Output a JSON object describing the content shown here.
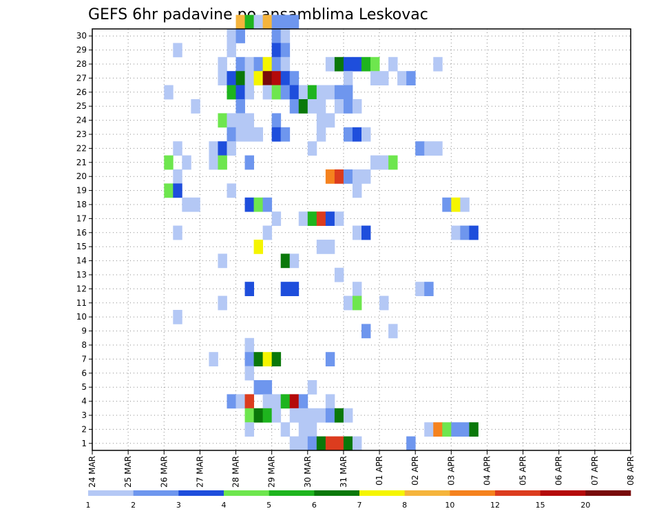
{
  "chart_data": {
    "type": "heatmap",
    "title": "GEFS 6hr padavine po ansamblima Leskovac",
    "xlabel": "",
    "ylabel": "",
    "x_labels": [
      "24 MAR",
      "25 MAR",
      "26 MAR",
      "27 MAR",
      "28 MAR",
      "29 MAR",
      "30 MAR",
      "31 MAR",
      "01 APR",
      "02 APR",
      "03 APR",
      "04 APR",
      "05 APR",
      "06 APR",
      "07 APR",
      "08 APR"
    ],
    "y_labels": [
      "1",
      "2",
      "3",
      "4",
      "5",
      "6",
      "7",
      "8",
      "9",
      "10",
      "11",
      "12",
      "13",
      "14",
      "15",
      "16",
      "17",
      "18",
      "19",
      "20",
      "21",
      "22",
      "23",
      "24",
      "25",
      "26",
      "27",
      "28",
      "29",
      "30"
    ],
    "colorbar": {
      "labels": [
        "1",
        "2",
        "3",
        "4",
        "5",
        "6",
        "7",
        "8",
        "10",
        "12",
        "15",
        "20"
      ],
      "colors": [
        "#b4c8f5",
        "#6e96ee",
        "#1e4edc",
        "#6ee64e",
        "#1eb41e",
        "#0a780a",
        "#f5f500",
        "#f5b43c",
        "#f5821e",
        "#dc3c1e",
        "#b40a0a",
        "#780a0a"
      ]
    },
    "grid": true,
    "note_cells": "cells: [run_step_index, member_row, precip_class]",
    "cells": [
      [
        16,
        30,
        8
      ],
      [
        17,
        30,
        5
      ],
      [
        18,
        30,
        1
      ],
      [
        19,
        30,
        8
      ],
      [
        20,
        30,
        2
      ],
      [
        21,
        30,
        2
      ],
      [
        22,
        30,
        2
      ],
      [
        15,
        29,
        1
      ],
      [
        16,
        29,
        2
      ],
      [
        20,
        29,
        2
      ],
      [
        21,
        29,
        1
      ],
      [
        9,
        28,
        1
      ],
      [
        15,
        28,
        1
      ],
      [
        20,
        28,
        3
      ],
      [
        21,
        28,
        2
      ],
      [
        14,
        27,
        1
      ],
      [
        16,
        27,
        2
      ],
      [
        17,
        27,
        1
      ],
      [
        18,
        27,
        2
      ],
      [
        19,
        27,
        7
      ],
      [
        20,
        27,
        2
      ],
      [
        21,
        27,
        1
      ],
      [
        26,
        27,
        1
      ],
      [
        27,
        27,
        6
      ],
      [
        28,
        27,
        3
      ],
      [
        29,
        27,
        3
      ],
      [
        30,
        27,
        5
      ],
      [
        31,
        27,
        4
      ],
      [
        33,
        27,
        1
      ],
      [
        38,
        27,
        1
      ],
      [
        14,
        26,
        1
      ],
      [
        15,
        26,
        3
      ],
      [
        16,
        26,
        6
      ],
      [
        17,
        26,
        1
      ],
      [
        18,
        26,
        7
      ],
      [
        19,
        26,
        12
      ],
      [
        20,
        26,
        11
      ],
      [
        21,
        26,
        3
      ],
      [
        22,
        26,
        2
      ],
      [
        28,
        26,
        1
      ],
      [
        31,
        26,
        1
      ],
      [
        32,
        26,
        1
      ],
      [
        34,
        26,
        1
      ],
      [
        35,
        26,
        2
      ],
      [
        8,
        25,
        1
      ],
      [
        15,
        25,
        5
      ],
      [
        16,
        25,
        3
      ],
      [
        17,
        25,
        1
      ],
      [
        19,
        25,
        1
      ],
      [
        20,
        25,
        4
      ],
      [
        21,
        25,
        2
      ],
      [
        22,
        25,
        3
      ],
      [
        23,
        25,
        1
      ],
      [
        24,
        25,
        5
      ],
      [
        25,
        25,
        1
      ],
      [
        26,
        25,
        1
      ],
      [
        27,
        25,
        2
      ],
      [
        28,
        25,
        2
      ],
      [
        11,
        24,
        1
      ],
      [
        16,
        24,
        2
      ],
      [
        22,
        24,
        2
      ],
      [
        23,
        24,
        6
      ],
      [
        24,
        24,
        1
      ],
      [
        25,
        24,
        1
      ],
      [
        27,
        24,
        1
      ],
      [
        28,
        24,
        2
      ],
      [
        29,
        24,
        1
      ],
      [
        14,
        23,
        4
      ],
      [
        15,
        23,
        1
      ],
      [
        16,
        23,
        1
      ],
      [
        17,
        23,
        1
      ],
      [
        20,
        23,
        2
      ],
      [
        25,
        23,
        1
      ],
      [
        26,
        23,
        1
      ],
      [
        15,
        22,
        2
      ],
      [
        16,
        22,
        1
      ],
      [
        17,
        22,
        1
      ],
      [
        18,
        22,
        1
      ],
      [
        20,
        22,
        3
      ],
      [
        21,
        22,
        2
      ],
      [
        25,
        22,
        1
      ],
      [
        28,
        22,
        2
      ],
      [
        29,
        22,
        3
      ],
      [
        30,
        22,
        1
      ],
      [
        9,
        21,
        1
      ],
      [
        13,
        21,
        1
      ],
      [
        14,
        21,
        3
      ],
      [
        15,
        21,
        1
      ],
      [
        24,
        21,
        1
      ],
      [
        36,
        21,
        2
      ],
      [
        37,
        21,
        1
      ],
      [
        38,
        21,
        1
      ],
      [
        8,
        20,
        4
      ],
      [
        10,
        20,
        1
      ],
      [
        13,
        20,
        1
      ],
      [
        14,
        20,
        4
      ],
      [
        17,
        20,
        2
      ],
      [
        31,
        20,
        1
      ],
      [
        32,
        20,
        1
      ],
      [
        33,
        20,
        4
      ],
      [
        9,
        19,
        1
      ],
      [
        26,
        19,
        9
      ],
      [
        27,
        19,
        10
      ],
      [
        28,
        19,
        2
      ],
      [
        29,
        19,
        1
      ],
      [
        30,
        19,
        1
      ],
      [
        8,
        18,
        4
      ],
      [
        9,
        18,
        3
      ],
      [
        15,
        18,
        1
      ],
      [
        29,
        18,
        1
      ],
      [
        10,
        17,
        1
      ],
      [
        11,
        17,
        1
      ],
      [
        17,
        17,
        3
      ],
      [
        18,
        17,
        4
      ],
      [
        19,
        17,
        2
      ],
      [
        39,
        17,
        2
      ],
      [
        40,
        17,
        7
      ],
      [
        41,
        17,
        1
      ],
      [
        20,
        16,
        1
      ],
      [
        23,
        16,
        1
      ],
      [
        24,
        16,
        5
      ],
      [
        25,
        16,
        10
      ],
      [
        26,
        16,
        3
      ],
      [
        27,
        16,
        1
      ],
      [
        9,
        15,
        1
      ],
      [
        19,
        15,
        1
      ],
      [
        29,
        15,
        1
      ],
      [
        30,
        15,
        3
      ],
      [
        40,
        15,
        1
      ],
      [
        41,
        15,
        2
      ],
      [
        42,
        15,
        3
      ],
      [
        18,
        14,
        7
      ],
      [
        25,
        14,
        1
      ],
      [
        26,
        14,
        1
      ],
      [
        14,
        13,
        1
      ],
      [
        21,
        13,
        6
      ],
      [
        22,
        13,
        1
      ],
      [
        27,
        12,
        1
      ],
      [
        17,
        11,
        3
      ],
      [
        21,
        11,
        3
      ],
      [
        22,
        11,
        3
      ],
      [
        29,
        11,
        1
      ],
      [
        36,
        11,
        1
      ],
      [
        37,
        11,
        2
      ],
      [
        14,
        10,
        1
      ],
      [
        28,
        10,
        1
      ],
      [
        29,
        10,
        4
      ],
      [
        32,
        10,
        1
      ],
      [
        9,
        9,
        1
      ],
      [
        30,
        8,
        2
      ],
      [
        33,
        8,
        1
      ],
      [
        17,
        7,
        1
      ],
      [
        13,
        6,
        1
      ],
      [
        17,
        6,
        2
      ],
      [
        18,
        6,
        6
      ],
      [
        19,
        6,
        7
      ],
      [
        20,
        6,
        6
      ],
      [
        26,
        6,
        2
      ],
      [
        17,
        5,
        1
      ],
      [
        18,
        4,
        2
      ],
      [
        19,
        4,
        2
      ],
      [
        24,
        4,
        1
      ],
      [
        15,
        3,
        2
      ],
      [
        16,
        3,
        1
      ],
      [
        17,
        3,
        10
      ],
      [
        19,
        3,
        1
      ],
      [
        20,
        3,
        1
      ],
      [
        21,
        3,
        5
      ],
      [
        22,
        3,
        11
      ],
      [
        23,
        3,
        2
      ],
      [
        26,
        3,
        1
      ],
      [
        17,
        2,
        4
      ],
      [
        18,
        2,
        6
      ],
      [
        19,
        2,
        5
      ],
      [
        20,
        2,
        1
      ],
      [
        22,
        2,
        1
      ],
      [
        23,
        2,
        1
      ],
      [
        24,
        2,
        1
      ],
      [
        25,
        2,
        1
      ],
      [
        26,
        2,
        2
      ],
      [
        27,
        2,
        6
      ],
      [
        28,
        2,
        1
      ],
      [
        17,
        1,
        1
      ],
      [
        21,
        1,
        1
      ],
      [
        23,
        1,
        1
      ],
      [
        24,
        1,
        1
      ],
      [
        37,
        1,
        1
      ],
      [
        38,
        1,
        9
      ],
      [
        39,
        1,
        4
      ],
      [
        40,
        1,
        2
      ],
      [
        41,
        1,
        2
      ],
      [
        42,
        1,
        6
      ],
      [
        22,
        0,
        1
      ],
      [
        23,
        0,
        1
      ],
      [
        24,
        0,
        2
      ],
      [
        25,
        0,
        6
      ],
      [
        26,
        0,
        10
      ],
      [
        27,
        0,
        10
      ],
      [
        28,
        0,
        6
      ],
      [
        29,
        0,
        1
      ],
      [
        35,
        0,
        2
      ]
    ]
  }
}
